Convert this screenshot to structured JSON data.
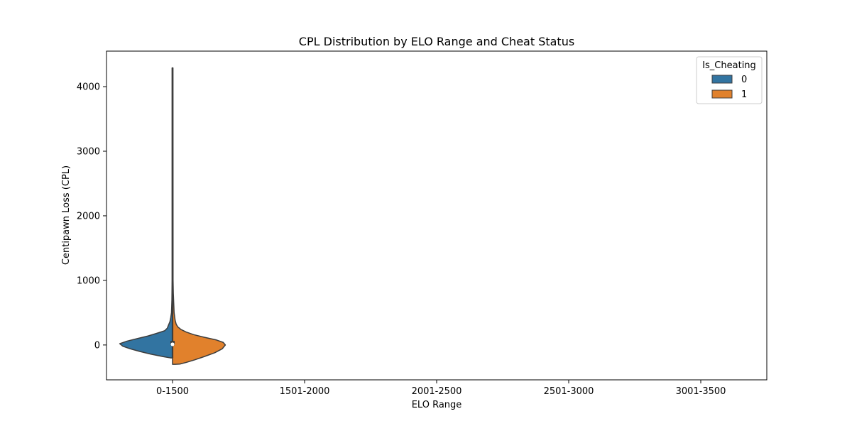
{
  "chart_data": {
    "type": "violin",
    "title": "CPL Distribution by ELO Range and Cheat Status",
    "xlabel": "ELO Range",
    "ylabel": "Centipawn Loss (CPL)",
    "categories": [
      "0-1500",
      "1501-2000",
      "2001-2500",
      "2501-3000",
      "3001-3500"
    ],
    "ylim": [
      -540,
      4550
    ],
    "yticks": [
      0,
      1000,
      2000,
      3000,
      4000
    ],
    "legend": {
      "title": "Is_Cheating",
      "placement": "top-right",
      "entries": [
        "0",
        "1"
      ]
    },
    "series": [
      {
        "name": "0",
        "color": "#3274a1",
        "category": "0-1500",
        "side": "left",
        "min": -200,
        "max": 4290,
        "quartiles": [
          -5,
          10,
          30
        ],
        "density_profile": [
          [
            -200,
            0.04
          ],
          [
            -180,
            0.18
          ],
          [
            -140,
            0.42
          ],
          [
            -100,
            0.62
          ],
          [
            -60,
            0.8
          ],
          [
            -20,
            0.94
          ],
          [
            20,
            1.0
          ],
          [
            60,
            0.86
          ],
          [
            100,
            0.66
          ],
          [
            140,
            0.46
          ],
          [
            180,
            0.3
          ],
          [
            220,
            0.15
          ],
          [
            260,
            0.1
          ],
          [
            300,
            0.08
          ],
          [
            360,
            0.05
          ],
          [
            420,
            0.035
          ],
          [
            500,
            0.02
          ],
          [
            700,
            0.012
          ],
          [
            1000,
            0.008
          ],
          [
            4290,
            0.008
          ]
        ]
      },
      {
        "name": "1",
        "color": "#e1812c",
        "category": "0-1500",
        "side": "right",
        "min": -300,
        "max": 4290,
        "quartiles": [
          -5,
          10,
          30
        ],
        "density_profile": [
          [
            -300,
            0.05
          ],
          [
            -295,
            0.14
          ],
          [
            -270,
            0.26
          ],
          [
            -230,
            0.42
          ],
          [
            -180,
            0.6
          ],
          [
            -120,
            0.8
          ],
          [
            -60,
            0.94
          ],
          [
            0,
            1.0
          ],
          [
            40,
            0.96
          ],
          [
            80,
            0.82
          ],
          [
            120,
            0.6
          ],
          [
            160,
            0.4
          ],
          [
            200,
            0.26
          ],
          [
            240,
            0.16
          ],
          [
            280,
            0.1
          ],
          [
            320,
            0.07
          ],
          [
            380,
            0.05
          ],
          [
            500,
            0.03
          ],
          [
            800,
            0.015
          ],
          [
            1000,
            0.01
          ],
          [
            4290,
            0.008
          ]
        ]
      }
    ],
    "grid": false
  }
}
